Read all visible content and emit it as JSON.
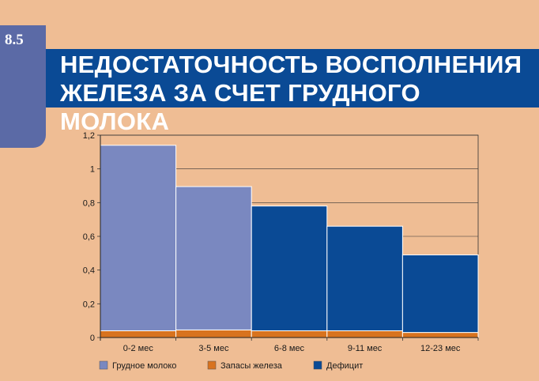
{
  "page_number": "8.5",
  "title_lines": [
    "НЕДОСТАТОЧНОСТЬ ВОСПОЛНЕНИЯ",
    "ЖЕЛЕЗА ЗА СЧЕТ ГРУДНОГО МОЛОКА"
  ],
  "colors": {
    "background": "#efbd94",
    "banner": "#0a4a95",
    "tab": "#5b6aa6",
    "breast_milk": "#7a88c0",
    "iron_stores": "#d8731f",
    "deficit": "#0a4a95"
  },
  "chart_data": {
    "type": "bar",
    "stacked": true,
    "categories": [
      "0-2 мес",
      "3-5 мес",
      "6-8 мес",
      "9-11 мес",
      "12-23 мес"
    ],
    "series": [
      {
        "name": "Запасы железа",
        "values": [
          0.04,
          0.045,
          0.04,
          0.04,
          0.03
        ]
      },
      {
        "name": "Грудное молоко",
        "values": [
          1.1,
          0.85,
          0,
          0,
          0
        ]
      },
      {
        "name": "Дефицит",
        "values": [
          0,
          0,
          0.74,
          0.62,
          0.46
        ]
      }
    ],
    "ylim": [
      0,
      1.2
    ],
    "yticks": [
      "0",
      "0,2",
      "0,4",
      "0,6",
      "0,8",
      "1",
      "1,2"
    ],
    "ytick_values": [
      0,
      0.2,
      0.4,
      0.6,
      0.8,
      1.0,
      1.2
    ],
    "legend": [
      "Грудное молоко",
      "Запасы железа",
      "Дефицит"
    ],
    "legend_position": "bottom",
    "grid": true
  }
}
